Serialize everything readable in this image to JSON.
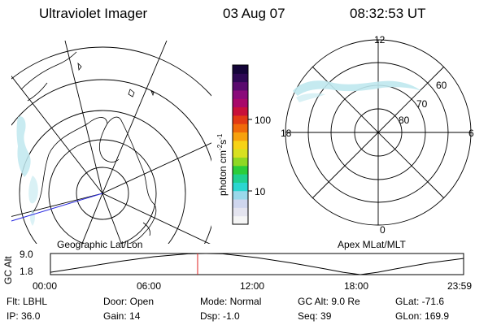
{
  "header": {
    "instrument": "Ultraviolet Imager",
    "date": "03 Aug 07",
    "time": "08:32:53 UT"
  },
  "colorbar": {
    "label": "photon cm",
    "label_exp1": "-2",
    "label_mid": "s",
    "label_exp2": "-1",
    "tick_100": "100",
    "tick_10": "10",
    "colors": [
      "#f5f5f5",
      "#e4e4ef",
      "#cfd6ee",
      "#9ad8ea",
      "#2bd6d0",
      "#1fd08f",
      "#2bcd3a",
      "#8fd823",
      "#d8e020",
      "#f7d315",
      "#f7a10d",
      "#f06a0a",
      "#e23a14",
      "#c8103a",
      "#a8086a",
      "#8a0a7a",
      "#5a0a6e",
      "#2e0854",
      "#140438"
    ]
  },
  "geo_map": {
    "name": "Geographic Lat/Lon"
  },
  "polar_map": {
    "name": "Apex MLat/MLT",
    "mlt_top": "12",
    "mlt_left": "18",
    "mlt_right": "6",
    "mlt_bottom": "0",
    "lat_60": "60",
    "lat_70": "70",
    "lat_80": "80"
  },
  "altitude": {
    "axis_label": "GC Alt",
    "y_max": "9.0",
    "y_min": "1.8",
    "time_ticks": [
      "00:00",
      "06:00",
      "12:00",
      "18:00",
      "23:59"
    ],
    "current_time_hours": 8.55,
    "chart_data": {
      "type": "line",
      "xlabel": "",
      "ylabel": "GC Alt",
      "xlim": [
        0,
        24
      ],
      "ylim": [
        1.8,
        9.0
      ],
      "x": [
        0,
        2,
        4,
        6,
        8,
        9,
        10,
        12,
        14,
        16,
        17,
        18,
        19,
        20,
        22,
        23.98
      ],
      "y": [
        2.6,
        4.4,
        6.3,
        7.9,
        8.9,
        9.0,
        8.9,
        7.6,
        5.8,
        3.7,
        2.6,
        1.8,
        2.6,
        3.7,
        5.8,
        7.3
      ]
    }
  },
  "info": {
    "flt": "Flt: LBHL",
    "ip": "IP: 36.0",
    "door": "Door: Open",
    "gain": "Gain: 14",
    "mode": "Mode: Normal",
    "dsp": "Dsp:   -1.0",
    "gcalt": "GC Alt: 9.0 Re",
    "seq": "Seq: 39",
    "glat": "GLat: -71.6",
    "glon": "GLon: 169.9"
  }
}
